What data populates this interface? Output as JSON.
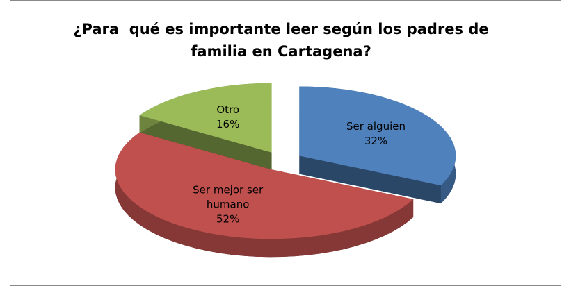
{
  "chart_data": {
    "type": "pie",
    "title": "¿Para  qué es importante leer según los padres de familia en Cartagena?",
    "categories": [
      "Ser alguien",
      "Ser mejor ser humano",
      "Otro"
    ],
    "values": [
      32,
      52,
      16
    ],
    "value_labels": [
      "32%",
      "52%",
      "16%"
    ],
    "colors": [
      "#4f81bd",
      "#c0504d",
      "#9bbb59"
    ]
  }
}
